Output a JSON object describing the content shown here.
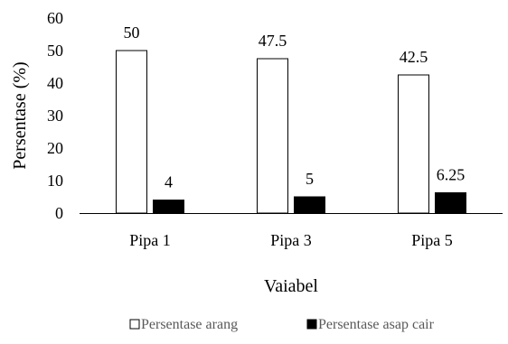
{
  "chart_data": {
    "type": "bar",
    "title": "",
    "xlabel": "Vaiabel",
    "ylabel": "Persentase (%)",
    "categories": [
      "Pipa 1",
      "Pipa 3",
      "Pipa 5"
    ],
    "series": [
      {
        "name": "Persentase arang",
        "values": [
          50,
          47.5,
          42.5
        ],
        "data_labels": [
          "50",
          "47.5",
          "42.5"
        ],
        "fill": "#ffffff",
        "stroke": "#000000"
      },
      {
        "name": "Persentase asap cair",
        "values": [
          4,
          5,
          6.25
        ],
        "data_labels": [
          "4",
          "5",
          "6.25"
        ],
        "fill": "#000000",
        "stroke": "#000000"
      }
    ],
    "ylim": [
      0,
      60
    ],
    "yticks": [
      0,
      10,
      20,
      30,
      40,
      50,
      60
    ],
    "grid": false,
    "legend_position": "bottom"
  }
}
